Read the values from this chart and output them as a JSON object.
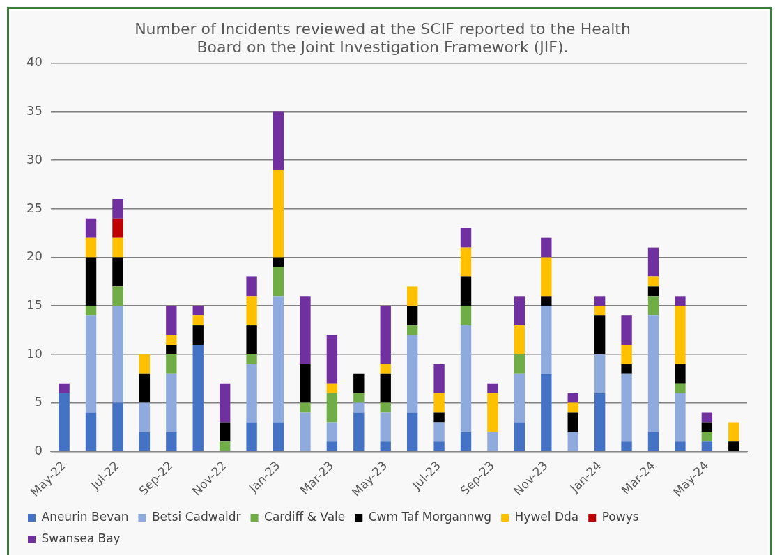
{
  "chart_data": {
    "type": "bar",
    "stacked": true,
    "title": "Number of Incidents reviewed at the SCIF reported to the Health Board on the Joint Investigation Framework (JIF).",
    "categories": [
      "May-22",
      null,
      "Jul-22",
      null,
      "Sep-22",
      null,
      "Nov-22",
      null,
      "Jan-23",
      null,
      "Mar-23",
      null,
      "May-23",
      null,
      "Jul-23",
      null,
      "Sep-23",
      null,
      "Nov-23",
      null,
      "Jan-24",
      null,
      "Mar-24",
      null,
      "May-24",
      null
    ],
    "series": [
      {
        "name": "Aneurin Bevan",
        "color": "#4472c4",
        "values": [
          6,
          4,
          5,
          2,
          2,
          11,
          0,
          3,
          3,
          0,
          1,
          4,
          1,
          4,
          1,
          2,
          0,
          3,
          8,
          0,
          6,
          1,
          2,
          1,
          1,
          0
        ]
      },
      {
        "name": "Betsi Cadwaldr",
        "color": "#8faadc",
        "values": [
          0,
          10,
          10,
          3,
          6,
          0,
          0,
          6,
          13,
          4,
          2,
          1,
          3,
          8,
          2,
          11,
          2,
          5,
          7,
          2,
          4,
          7,
          12,
          5,
          0,
          0
        ]
      },
      {
        "name": "Cardiff & Vale",
        "color": "#70ad47",
        "values": [
          0,
          1,
          2,
          0,
          2,
          0,
          1,
          1,
          3,
          1,
          3,
          1,
          1,
          1,
          0,
          2,
          0,
          2,
          0,
          0,
          0,
          0,
          2,
          1,
          1,
          0
        ]
      },
      {
        "name": "Cwm Taf Morgannwg",
        "color": "#000000",
        "values": [
          0,
          5,
          3,
          3,
          1,
          2,
          2,
          3,
          1,
          4,
          0,
          2,
          3,
          2,
          1,
          3,
          0,
          0,
          1,
          2,
          4,
          1,
          1,
          2,
          1,
          1
        ]
      },
      {
        "name": "Hywel Dda",
        "color": "#ffc000",
        "values": [
          0,
          2,
          2,
          2,
          1,
          1,
          0,
          3,
          9,
          0,
          1,
          0,
          1,
          2,
          2,
          3,
          4,
          3,
          4,
          1,
          1,
          2,
          1,
          6,
          0,
          2
        ]
      },
      {
        "name": "Powys",
        "color": "#c00000",
        "values": [
          0,
          0,
          2,
          0,
          0,
          0,
          0,
          0,
          0,
          0,
          0,
          0,
          0,
          0,
          0,
          0,
          0,
          0,
          0,
          0,
          0,
          0,
          0,
          0,
          0,
          0
        ]
      },
      {
        "name": "Swansea Bay",
        "color": "#7030a0",
        "values": [
          1,
          2,
          2,
          0,
          3,
          1,
          4,
          2,
          6,
          7,
          5,
          0,
          6,
          0,
          3,
          2,
          1,
          3,
          2,
          1,
          1,
          3,
          3,
          1,
          1,
          0
        ]
      }
    ],
    "ylim": [
      0,
      40
    ],
    "yticks": [
      0,
      5,
      10,
      15,
      20,
      25,
      30,
      35,
      40
    ],
    "grid": "y",
    "legend": "bottom"
  }
}
